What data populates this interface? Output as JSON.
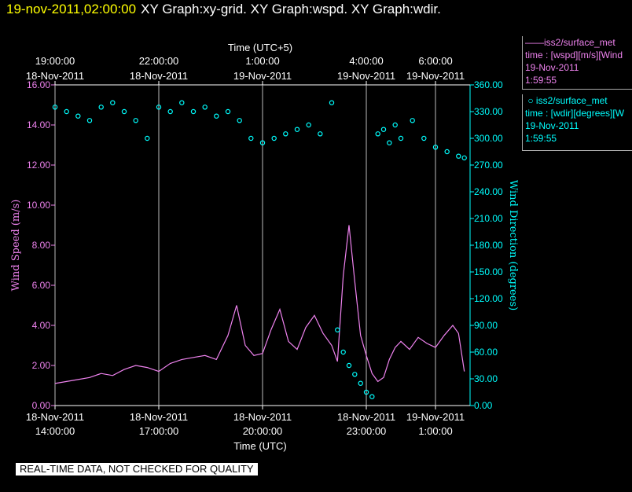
{
  "header": {
    "timestamp": "19-nov-2011,02:00:00",
    "graphs": "XY Graph:xy-grid.  XY Graph:wspd.  XY Graph:wdir."
  },
  "legend": [
    {
      "line": "iss2/surface_met",
      "field": "time : [wspd][m/s][Wind",
      "date": "19-Nov-2011",
      "time": "1:59:55"
    },
    {
      "line": "iss2/surface_met",
      "field": "time : [wdir][degrees][W",
      "date": "19-Nov-2011",
      "time": "1:59:55"
    }
  ],
  "disclaimer": "REAL-TIME DATA, NOT CHECKED FOR QUALITY",
  "colors": {
    "wspd": "#ee82ee",
    "wdir": "#00ffff",
    "grid": "#bbbbbb",
    "header": "#ffff00"
  },
  "chart_data": {
    "type": "line",
    "top_axis": {
      "title": "Time (UTC+5)",
      "ticks": [
        {
          "x": "18-Nov-2011 14:00",
          "time": "19:00:00",
          "date": "18-Nov-2011"
        },
        {
          "x": "18-Nov-2011 17:00",
          "time": "22:00:00",
          "date": "18-Nov-2011"
        },
        {
          "x": "18-Nov-2011 20:00",
          "time": "1:00:00",
          "date": "19-Nov-2011"
        },
        {
          "x": "18-Nov-2011 23:00",
          "time": "4:00:00",
          "date": "19-Nov-2011"
        },
        {
          "x": "19-Nov-2011 01:00",
          "time": "6:00:00",
          "date": "19-Nov-2011"
        }
      ]
    },
    "bottom_axis": {
      "title": "Time (UTC)",
      "range": [
        "18-Nov-2011 14:00",
        "19-Nov-2011 02:00"
      ],
      "ticks": [
        {
          "x": "18-Nov-2011 14:00",
          "date": "18-Nov-2011",
          "time": "14:00:00"
        },
        {
          "x": "18-Nov-2011 17:00",
          "date": "18-Nov-2011",
          "time": "17:00:00"
        },
        {
          "x": "18-Nov-2011 20:00",
          "date": "18-Nov-2011",
          "time": "20:00:00"
        },
        {
          "x": "18-Nov-2011 23:00",
          "date": "18-Nov-2011",
          "time": "23:00:00"
        },
        {
          "x": "19-Nov-2011 01:00",
          "date": "19-Nov-2011",
          "time": "1:00:00"
        }
      ]
    },
    "left_axis": {
      "title": "Wind Speed (m/s)",
      "range": [
        0,
        16
      ],
      "ticks": [
        "0.00",
        "2.00",
        "4.00",
        "6.00",
        "8.00",
        "10.00",
        "12.00",
        "14.00",
        "16.00"
      ]
    },
    "right_axis": {
      "title": "Wind Direction (degrees)",
      "range": [
        0,
        360
      ],
      "ticks": [
        "0.00",
        "30.00",
        "60.00",
        "90.00",
        "120.00",
        "150.00",
        "180.00",
        "210.00",
        "240.00",
        "270.00",
        "300.00",
        "330.00",
        "360.00"
      ]
    },
    "grid": "vertical",
    "series": [
      {
        "name": "iss2/surface_met wspd",
        "style": "line",
        "x": [
          "18-Nov-2011 14:00",
          "14:20",
          "14:40",
          "15:00",
          "15:20",
          "15:40",
          "16:00",
          "16:20",
          "16:40",
          "17:00",
          "17:20",
          "17:40",
          "18:00",
          "18:20",
          "18:40",
          "19:00",
          "19:15",
          "19:30",
          "19:45",
          "20:00",
          "20:15",
          "20:30",
          "20:45",
          "21:00",
          "21:15",
          "21:30",
          "21:45",
          "22:00",
          "22:10",
          "22:20",
          "22:30",
          "22:40",
          "22:50",
          "23:00",
          "23:10",
          "23:20",
          "23:30",
          "23:40",
          "23:50",
          "19-Nov-2011 00:00",
          "00:15",
          "00:30",
          "00:45",
          "01:00",
          "01:15",
          "01:30",
          "01:40",
          "01:50"
        ],
        "values": [
          1.1,
          1.2,
          1.3,
          1.4,
          1.6,
          1.5,
          1.8,
          2.0,
          1.9,
          1.7,
          2.1,
          2.3,
          2.4,
          2.5,
          2.3,
          3.5,
          5.0,
          3.0,
          2.5,
          2.6,
          3.8,
          4.8,
          3.2,
          2.8,
          3.9,
          4.5,
          3.6,
          3.0,
          2.2,
          6.5,
          9.0,
          6.2,
          3.5,
          2.5,
          1.6,
          1.2,
          1.4,
          2.3,
          2.9,
          3.2,
          2.8,
          3.4,
          3.1,
          2.9,
          3.5,
          4.0,
          3.6,
          1.7
        ]
      },
      {
        "name": "iss2/surface_met wdir",
        "style": "scatter",
        "x": [
          "18-Nov-2011 14:00",
          "14:20",
          "14:40",
          "15:00",
          "15:20",
          "15:40",
          "16:00",
          "16:20",
          "16:40",
          "17:00",
          "17:20",
          "17:40",
          "18:00",
          "18:20",
          "18:40",
          "19:00",
          "19:20",
          "19:40",
          "20:00",
          "20:20",
          "20:40",
          "21:00",
          "21:20",
          "21:40",
          "22:00",
          "22:10",
          "22:20",
          "22:30",
          "22:40",
          "22:50",
          "23:00",
          "23:10",
          "23:20",
          "23:30",
          "23:40",
          "23:50",
          "19-Nov-2011 00:00",
          "00:20",
          "00:40",
          "01:00",
          "01:20",
          "01:40",
          "01:50"
        ],
        "values": [
          335,
          330,
          325,
          320,
          335,
          340,
          330,
          320,
          300,
          335,
          330,
          340,
          330,
          335,
          325,
          330,
          320,
          300,
          295,
          300,
          305,
          310,
          315,
          305,
          340,
          85,
          60,
          45,
          35,
          25,
          15,
          10,
          305,
          310,
          295,
          315,
          300,
          320,
          300,
          290,
          285,
          280,
          278
        ]
      }
    ]
  }
}
